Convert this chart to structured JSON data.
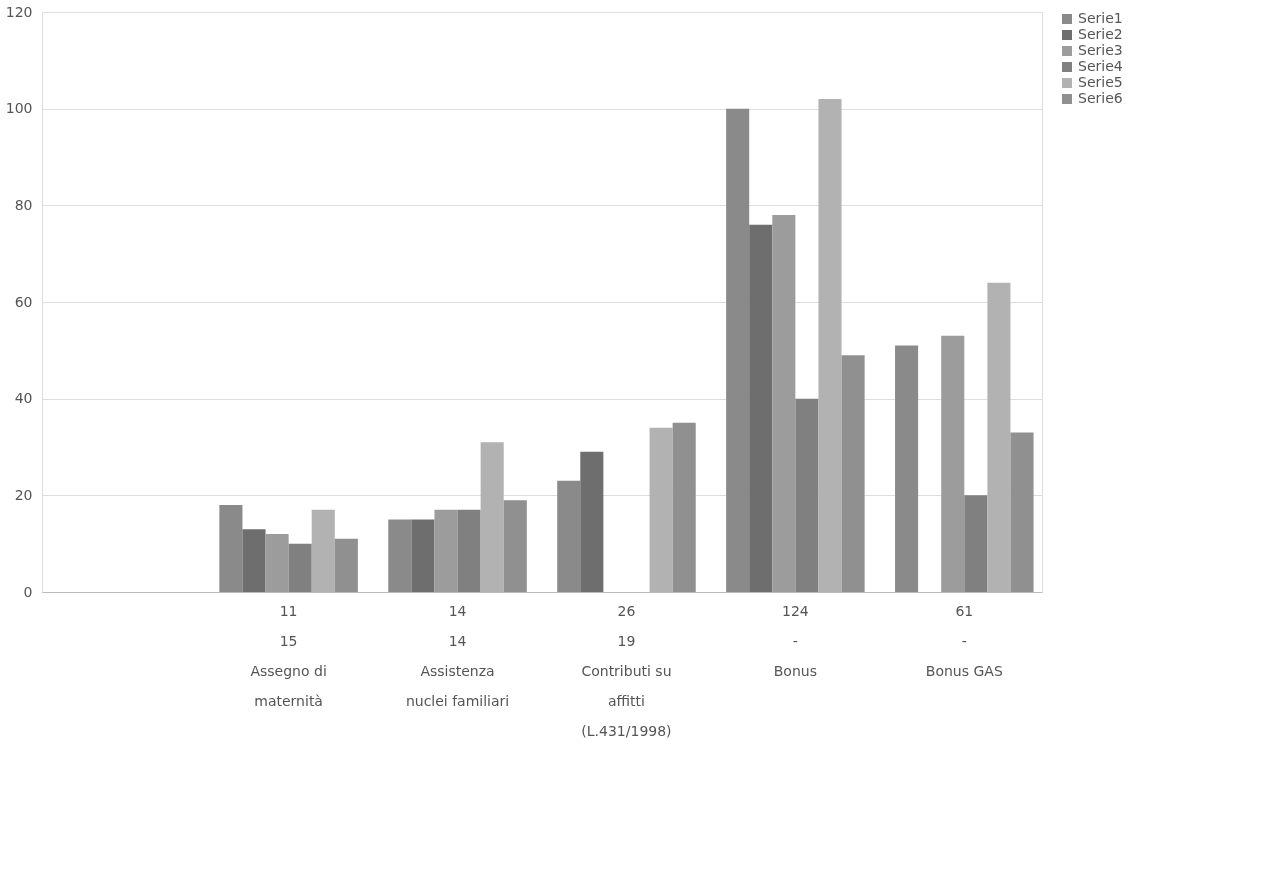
{
  "chart_data": {
    "type": "bar",
    "categories": [
      null,
      "11\n15\nAssegno di\nmaternità",
      "14\n14\nAssistenza\nnuclei familiari",
      "26\n19\nContributi su\naffitti\n(L.431/1998)",
      "124\n-\nBonus",
      "61\n-\nBonus GAS"
    ],
    "series": [
      {
        "name": "Serie1",
        "color": "#8a8a8a",
        "values": [
          null,
          18,
          15,
          23,
          100,
          51
        ]
      },
      {
        "name": "Serie2",
        "color": "#6e6e6e",
        "values": [
          null,
          13,
          15,
          29,
          76,
          null
        ]
      },
      {
        "name": "Serie3",
        "color": "#9c9c9c",
        "values": [
          null,
          12,
          17,
          null,
          78,
          53
        ]
      },
      {
        "name": "Serie4",
        "color": "#808080",
        "values": [
          null,
          10,
          17,
          null,
          40,
          20
        ]
      },
      {
        "name": "Serie5",
        "color": "#b2b2b2",
        "values": [
          null,
          17,
          31,
          34,
          102,
          64
        ]
      },
      {
        "name": "Serie6",
        "color": "#909090",
        "values": [
          null,
          11,
          19,
          35,
          49,
          33
        ]
      }
    ],
    "ylim": [
      0,
      120
    ],
    "yticks": [
      0,
      20,
      40,
      60,
      80,
      100,
      120
    ],
    "grid": "y",
    "legend": "right"
  }
}
